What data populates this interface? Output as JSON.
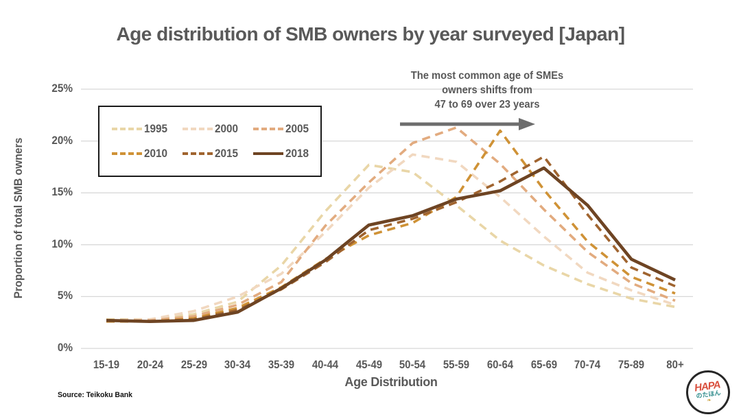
{
  "title": "Age distribution of SMB owners by year surveyed [Japan]",
  "annotation": {
    "lines": [
      "The most common age of SMEs",
      "owners shifts from",
      "47 to 69 over 23 years"
    ],
    "arrow_color": "#6d6d6d"
  },
  "axes": {
    "y_label": "Proportion of total SMB owners",
    "x_label": "Age Distribution",
    "y_ticks": [
      "0%",
      "5%",
      "10%",
      "15%",
      "20%",
      "25%"
    ],
    "grid_color": "#d8d8d8",
    "text_color": "#595959"
  },
  "source": "Source: Teikoku Bank",
  "logo": {
    "text_top": "HAPA",
    "text_mid": "のたほん",
    "leaf": "❧"
  },
  "chart_data": {
    "type": "line",
    "title": "Age distribution of SMB owners by year surveyed [Japan]",
    "xlabel": "Age Distribution",
    "ylabel": "Proportion of total SMB owners",
    "ylim": [
      0,
      26
    ],
    "grid": "horizontal",
    "legend_position": "top-left",
    "categories": [
      "15-19",
      "20-24",
      "25-29",
      "30-34",
      "35-39",
      "40-44",
      "45-49",
      "50-54",
      "55-59",
      "60-64",
      "65-69",
      "70-74",
      "75-89",
      "80+"
    ],
    "series": [
      {
        "name": "1995",
        "color": "#e9d6a7",
        "dashed": true,
        "values": [
          2.8,
          2.8,
          3.3,
          4.5,
          8.0,
          13.2,
          17.7,
          17.0,
          13.8,
          10.4,
          8.0,
          6.2,
          4.8,
          4.0
        ]
      },
      {
        "name": "2000",
        "color": "#f1d8c0",
        "dashed": true,
        "values": [
          2.7,
          2.8,
          3.6,
          5.0,
          7.2,
          11.2,
          15.5,
          18.7,
          18.0,
          14.6,
          10.8,
          7.3,
          5.6,
          4.2
        ]
      },
      {
        "name": "2005",
        "color": "#e2ab7f",
        "dashed": true,
        "values": [
          2.7,
          2.7,
          3.1,
          4.2,
          6.4,
          11.8,
          16.0,
          19.8,
          21.3,
          17.8,
          13.4,
          9.3,
          6.3,
          4.6
        ]
      },
      {
        "name": "2010",
        "color": "#cf9236",
        "dashed": true,
        "values": [
          2.6,
          2.6,
          2.9,
          3.9,
          5.9,
          8.6,
          10.9,
          12.1,
          14.6,
          21.0,
          15.3,
          10.3,
          6.9,
          5.3
        ]
      },
      {
        "name": "2015",
        "color": "#a0642f",
        "dashed": true,
        "values": [
          2.7,
          2.6,
          2.8,
          3.7,
          5.7,
          8.3,
          11.4,
          12.5,
          14.1,
          16.1,
          18.5,
          12.9,
          7.8,
          6.0
        ]
      },
      {
        "name": "2018",
        "color": "#6e4423",
        "dashed": false,
        "values": [
          2.7,
          2.6,
          2.7,
          3.5,
          5.8,
          8.5,
          11.9,
          12.8,
          14.4,
          15.2,
          17.4,
          13.8,
          8.6,
          6.6
        ]
      }
    ]
  }
}
